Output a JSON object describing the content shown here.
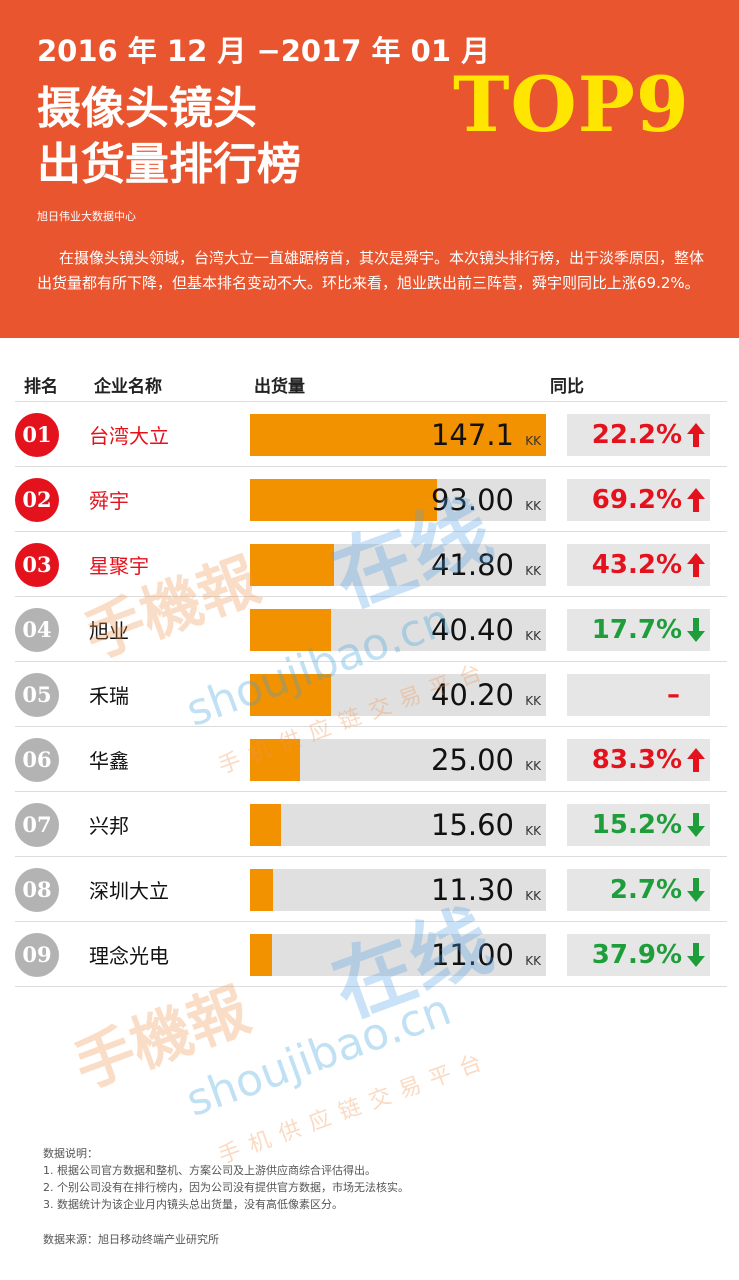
{
  "header": {
    "date": "2016 年 12 月 −2017 年 01 月",
    "title_line1": "摄像头镜头",
    "title_line2": "出货量排行榜",
    "badge": "TOP9",
    "source": "旭日伟业大数据中心",
    "description": "在摄像头镜头领域，台湾大立一直雄踞榜首，其次是舜宇。本次镜头排行榜，出于淡季原因，整体出货量都有所下降，但基本排名变动不大。环比来看，旭业跌出前三阵营，舜宇则同比上涨69.2%。"
  },
  "columns": {
    "rank": "排名",
    "company": "企业名称",
    "shipment": "出货量",
    "yoy": "同比"
  },
  "chart_data": {
    "type": "bar",
    "unit": "KK",
    "xlim": [
      0,
      147.1
    ],
    "categories": [
      "台湾大立",
      "舜宇",
      "星聚宇",
      "旭业",
      "禾瑞",
      "华鑫",
      "兴邦",
      "深圳大立",
      "理念光电"
    ],
    "rows": [
      {
        "rank": "01",
        "company": "台湾大立",
        "shipment": 147.1,
        "shipment_label": "147.1",
        "yoy": "22.2%",
        "trend": "up",
        "highlight": true
      },
      {
        "rank": "02",
        "company": "舜宇",
        "shipment": 93.0,
        "shipment_label": "93.00",
        "yoy": "69.2%",
        "trend": "up",
        "highlight": true
      },
      {
        "rank": "03",
        "company": "星聚宇",
        "shipment": 41.8,
        "shipment_label": "41.80",
        "yoy": "43.2%",
        "trend": "up",
        "highlight": true
      },
      {
        "rank": "04",
        "company": "旭业",
        "shipment": 40.4,
        "shipment_label": "40.40",
        "yoy": "17.7%",
        "trend": "down",
        "highlight": false
      },
      {
        "rank": "05",
        "company": "禾瑞",
        "shipment": 40.2,
        "shipment_label": "40.20",
        "yoy": "–",
        "trend": "flat",
        "highlight": false
      },
      {
        "rank": "06",
        "company": "华鑫",
        "shipment": 25.0,
        "shipment_label": "25.00",
        "yoy": "83.3%",
        "trend": "up",
        "highlight": false
      },
      {
        "rank": "07",
        "company": "兴邦",
        "shipment": 15.6,
        "shipment_label": "15.60",
        "yoy": "15.2%",
        "trend": "down",
        "highlight": false
      },
      {
        "rank": "08",
        "company": "深圳大立",
        "shipment": 11.3,
        "shipment_label": "11.30",
        "yoy": "2.7%",
        "trend": "down",
        "highlight": false
      },
      {
        "rank": "09",
        "company": "理念光电",
        "shipment": 11.0,
        "shipment_label": "11.00",
        "yoy": "37.9%",
        "trend": "down",
        "highlight": false
      }
    ]
  },
  "watermark": {
    "brand_left": "手機報",
    "brand_right": "在线",
    "site": "shoujibao.cn",
    "tagline": "手机供应链交易平台"
  },
  "notes": {
    "title": "数据说明：",
    "items": [
      "1. 根据公司官方数据和整机、方案公司及上游供应商综合评估得出。",
      "2. 个别公司没有在排行榜内，因为公司没有提供官方数据，市场无法核实。",
      "3. 数据统计为该企业月内镜头总出货量，没有高低像素区分。"
    ],
    "data_source": "数据来源：旭日移动终端产业研究所"
  },
  "colors": {
    "header_bg": "#e8552f",
    "badge_yellow": "#ffe600",
    "bar_fill": "#f29200",
    "bar_bg": "#e0e0e0",
    "up_red": "#e3121d",
    "down_green": "#1e9e3a",
    "rank_gray": "#b3b3b3"
  }
}
